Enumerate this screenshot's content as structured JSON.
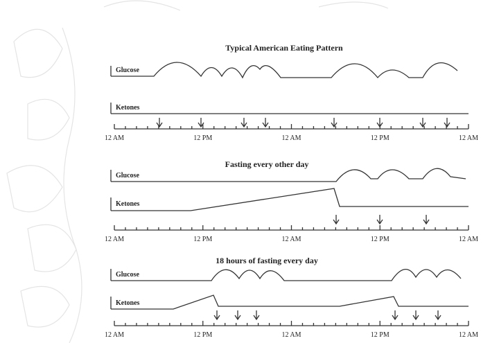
{
  "panels": [
    {
      "title": "Typical American Eating Pattern",
      "rows": [
        "Glucose",
        "Ketones"
      ],
      "axis_labels": [
        "12 AM",
        "12 PM",
        "12 AM",
        "12 PM",
        "12 AM"
      ]
    },
    {
      "title": "Fasting every other day",
      "rows": [
        "Glucose",
        "Ketones"
      ],
      "axis_labels": [
        "12 AM",
        "12 PM",
        "12 AM",
        "12 PM",
        "12 AM"
      ]
    },
    {
      "title": "18 hours of fasting every day",
      "rows": [
        "Glucose",
        "Ketones"
      ],
      "axis_labels": [
        "12 AM",
        "12 PM",
        "12 AM",
        "12 PM",
        "12 AM"
      ]
    }
  ]
}
